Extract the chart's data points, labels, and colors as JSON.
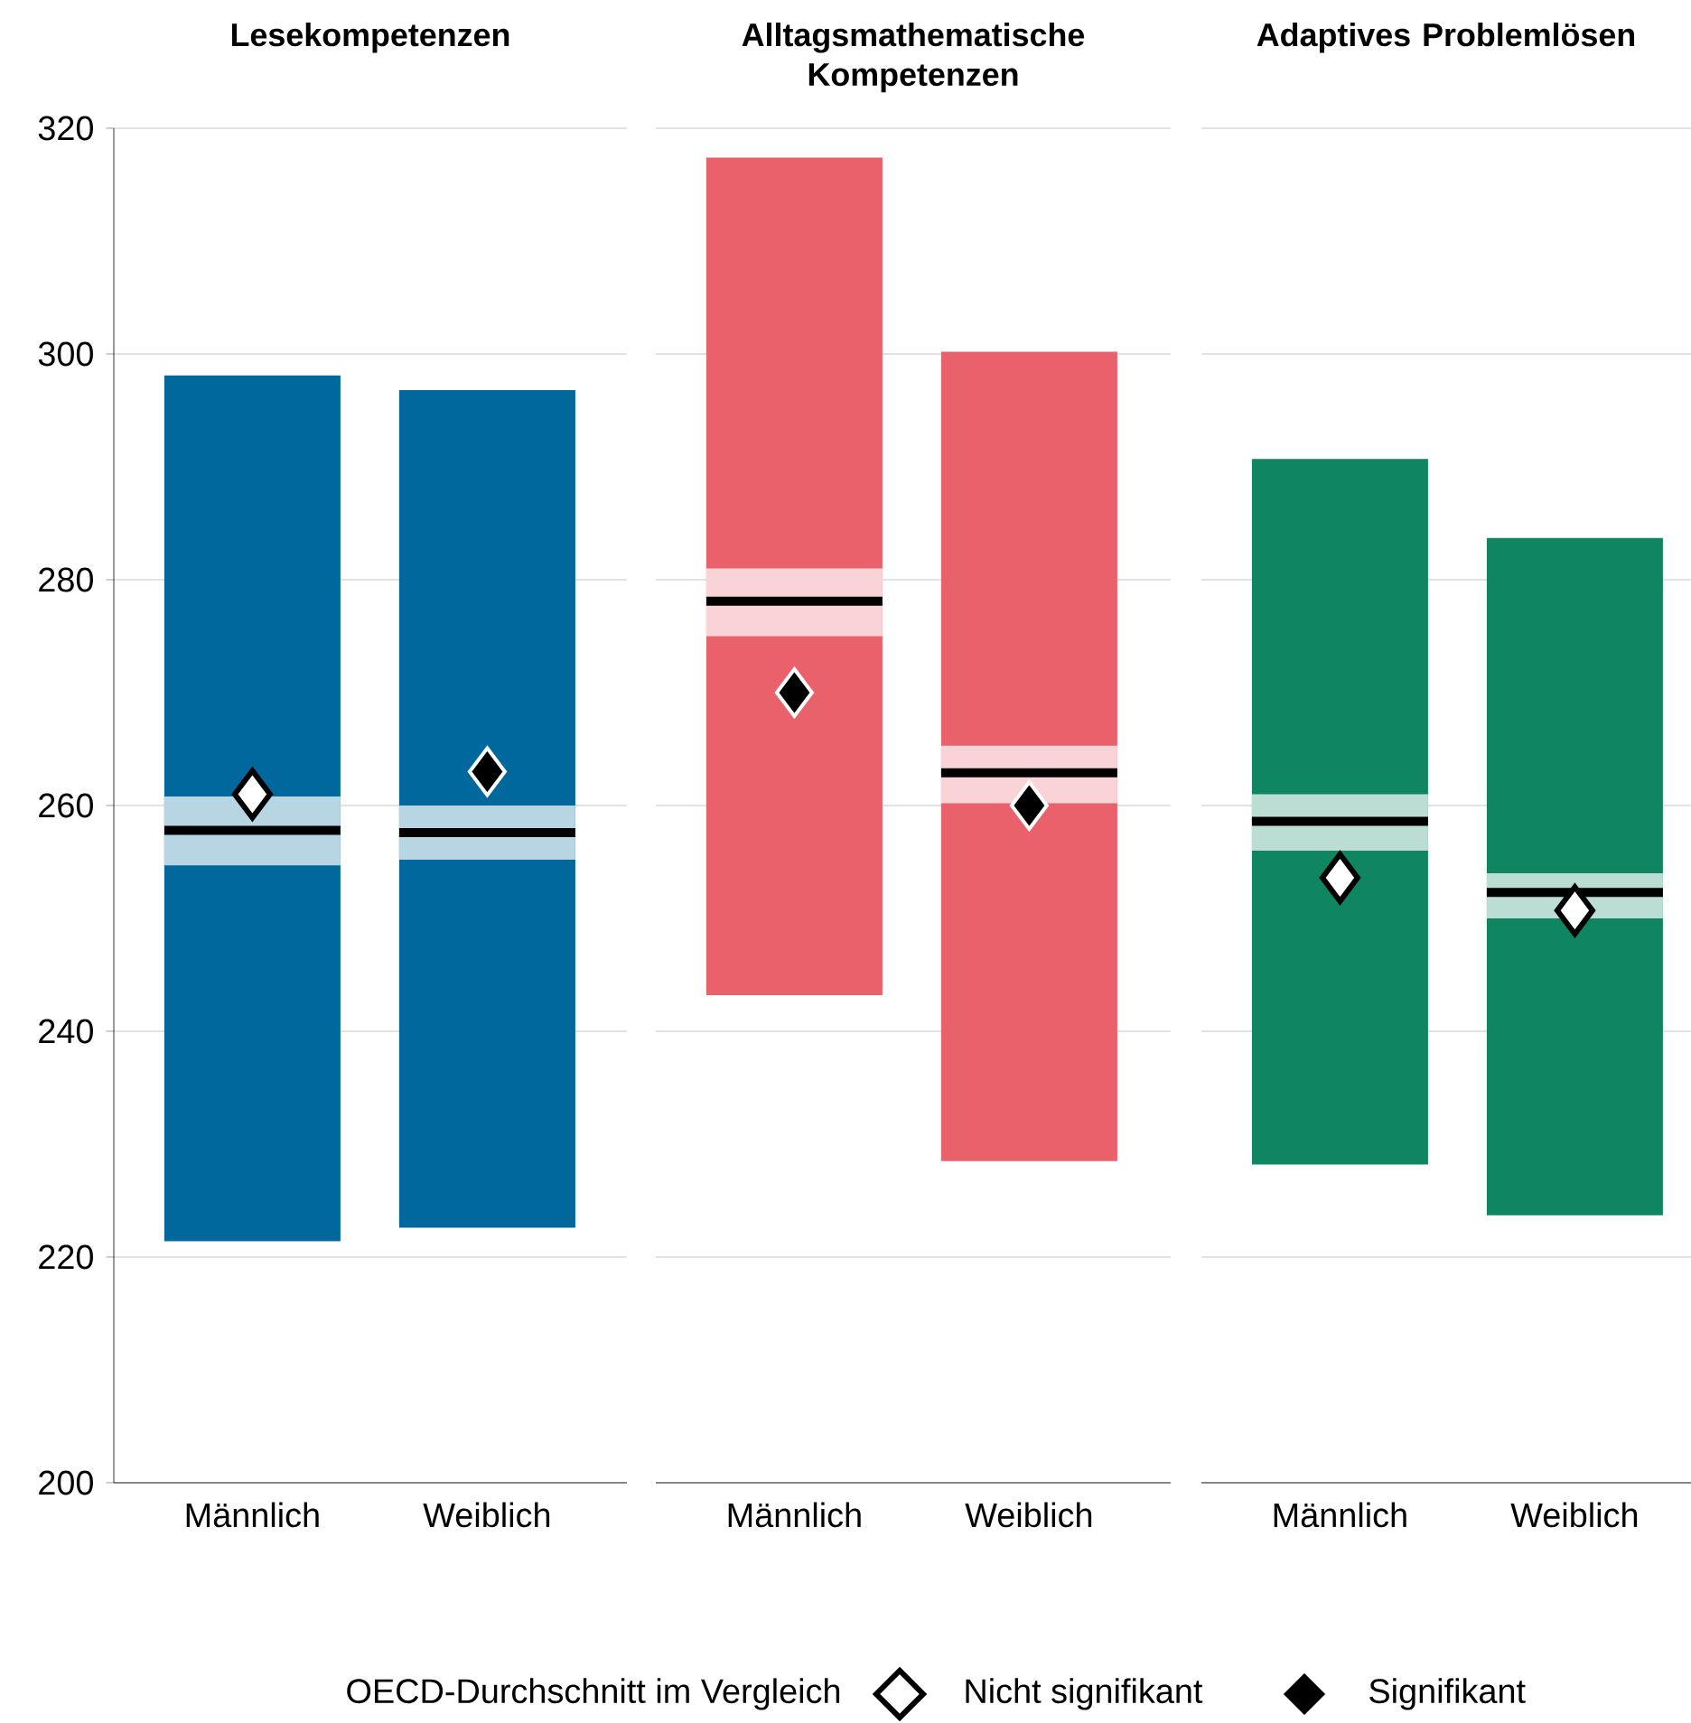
{
  "chart_data": [
    {
      "type": "bar",
      "title": "Lesekompetenzen",
      "categories": [
        "Männlich",
        "Weiblich"
      ],
      "ylim": [
        200,
        320
      ],
      "yticks": [
        200,
        220,
        240,
        260,
        280,
        300,
        320
      ],
      "grid": "y",
      "legend": "bottom",
      "legend_title": "OECD-Durchschnitt im Vergleich",
      "series": [
        {
          "type": "bar",
          "color": "#00689d",
          "base": [
            221.4,
            222.6
          ],
          "values": [
            76.7,
            74.2
          ]
        },
        {
          "type": "bar",
          "color": "#b8d5e4",
          "base": [
            254.7,
            255.2
          ],
          "values": [
            6.1,
            4.8
          ]
        },
        {
          "type": "bar",
          "color": "#000000",
          "base": [
            257.8,
            257.6
          ],
          "values": [
            0,
            0
          ]
        },
        {
          "type": "scatter",
          "name": "Nicht signifikant",
          "color": "#ffffff",
          "marker": "diamond",
          "x": [
            "Männlich",
            "Weiblich"
          ],
          "values": [
            261,
            null
          ]
        },
        {
          "type": "scatter",
          "name": "Signifikant",
          "color": "#000000",
          "marker": "diamond",
          "x": [
            "Männlich",
            "Weiblich"
          ],
          "values": [
            null,
            263
          ]
        }
      ]
    },
    {
      "type": "bar",
      "title": "Alltagsmathematische Kompetenzen",
      "categories": [
        "Männlich",
        "Weiblich"
      ],
      "ylim": [
        200,
        320
      ],
      "yticks": [
        200,
        220,
        240,
        260,
        280,
        300,
        320
      ],
      "grid": "y",
      "tick_labels": "x",
      "series": [
        {
          "type": "bar",
          "color": "#e9616b",
          "base": [
            243.2,
            228.5
          ],
          "values": [
            74.2,
            71.7
          ]
        },
        {
          "type": "bar",
          "color": "#f9d3d6",
          "base": [
            275,
            260.2
          ],
          "values": [
            6,
            5.1
          ]
        },
        {
          "type": "bar",
          "color": "#000000",
          "base": [
            278.1,
            262.9
          ],
          "values": [
            0,
            0
          ]
        },
        {
          "type": "scatter",
          "color": "#000000",
          "marker": "diamond",
          "x": [
            "Männlich",
            "Weiblich"
          ],
          "values": [
            270,
            260
          ]
        }
      ]
    },
    {
      "type": "bar",
      "title": "Adaptives Problemlösen",
      "categories": [
        "Männlich",
        "Weiblich"
      ],
      "ylim": [
        200,
        320
      ],
      "yticks": [
        200,
        220,
        240,
        260,
        280,
        300,
        320
      ],
      "grid": "y",
      "tick_labels": "x",
      "series": [
        {
          "type": "bar",
          "color": "#108561",
          "base": [
            228.2,
            223.7
          ],
          "values": [
            62.5,
            60
          ]
        },
        {
          "type": "bar",
          "color": "#bcddd3",
          "base": [
            256,
            250
          ],
          "values": [
            5,
            4
          ]
        },
        {
          "type": "bar",
          "color": "#000000",
          "base": [
            258.6,
            252.3
          ],
          "values": [
            0,
            0
          ]
        },
        {
          "type": "scatter",
          "color": "#ffffff",
          "marker": "diamond",
          "x": [
            "Männlich",
            "Weiblich"
          ],
          "values": [
            253.6,
            250.7
          ]
        }
      ]
    }
  ]
}
